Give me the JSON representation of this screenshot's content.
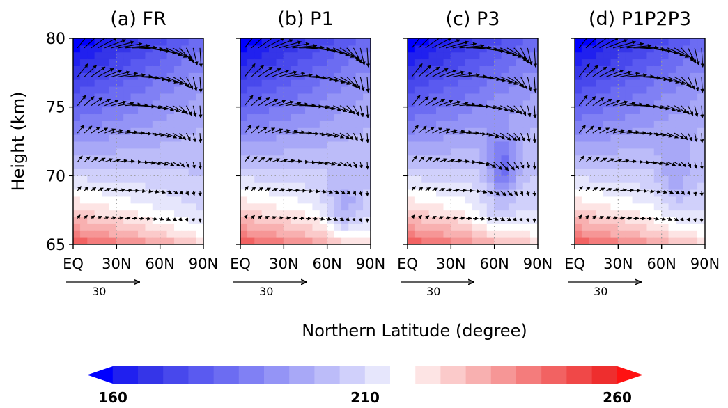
{
  "chart_data": [
    {
      "type": "heatmap",
      "title": "(a) FR",
      "x": [
        "EQ",
        "30N",
        "60N",
        "90N"
      ],
      "y": [
        65,
        70,
        75,
        80
      ],
      "ylabel": "Height (km)",
      "xlim": [
        0,
        90
      ],
      "ylim": [
        65,
        80
      ],
      "reference_vector": "30",
      "grid_lines": {
        "x": [
          30,
          60
        ],
        "y": [
          70
        ]
      }
    },
    {
      "type": "heatmap",
      "title": "(b) P1",
      "x": [
        "EQ",
        "30N",
        "60N",
        "90N"
      ],
      "y": [
        65,
        70,
        75,
        80
      ],
      "xlim": [
        0,
        90
      ],
      "ylim": [
        65,
        80
      ],
      "reference_vector": "30",
      "grid_lines": {
        "x": [
          30,
          60
        ],
        "y": [
          70
        ]
      }
    },
    {
      "type": "heatmap",
      "title": "(c) P3",
      "x": [
        "EQ",
        "30N",
        "60N",
        "90N"
      ],
      "y": [
        65,
        70,
        75,
        80
      ],
      "xlim": [
        0,
        90
      ],
      "ylim": [
        65,
        80
      ],
      "reference_vector": "30",
      "grid_lines": {
        "x": [
          30,
          60
        ],
        "y": [
          70
        ]
      }
    },
    {
      "type": "heatmap",
      "title": "(d) P1P2P3",
      "x": [
        "EQ",
        "30N",
        "60N",
        "90N"
      ],
      "y": [
        65,
        70,
        75,
        80
      ],
      "xlim": [
        0,
        90
      ],
      "ylim": [
        65,
        80
      ],
      "reference_vector": "30",
      "grid_lines": {
        "x": [
          30,
          60
        ],
        "y": [
          70
        ]
      }
    }
  ],
  "figure": {
    "ylabel": "Height (km)",
    "xlabel": "Northern Latitude (degree)"
  },
  "colorbar": {
    "ticks": [
      "160",
      "210",
      "260"
    ],
    "min": 160,
    "max": 260,
    "step": 5,
    "colors": [
      "#0000ff",
      "#2020ef",
      "#3535e8",
      "#4848ec",
      "#5a5af0",
      "#6c6cf2",
      "#8080f4",
      "#9494f6",
      "#a8a8f7",
      "#bcbcf9",
      "#d0d0fb",
      "#e6e6fc",
      "#ffffff",
      "#fde4e4",
      "#fbcaca",
      "#f8b0b0",
      "#f69696",
      "#f47c7c",
      "#f26262",
      "#f04848",
      "#ee2e2e",
      "#ff1212"
    ]
  }
}
